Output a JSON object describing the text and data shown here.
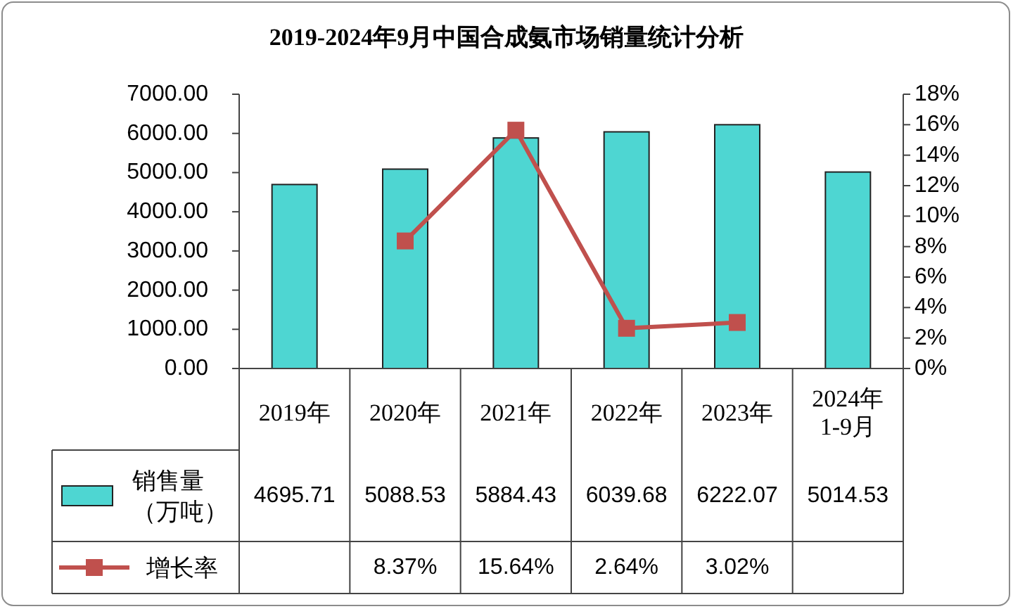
{
  "chart_data": {
    "type": "bar",
    "title": "2019-2024年9月中国合成氨市场销量统计分析",
    "categories": [
      "2019年",
      "2020年",
      "2021年",
      "2022年",
      "2023年",
      "2024年\n1-9月"
    ],
    "series": [
      {
        "name": "销售量（万吨）",
        "color": "#4ed6d2",
        "values": [
          4695.71,
          5088.53,
          5884.43,
          6039.68,
          6222.07,
          5014.53
        ],
        "value_labels": [
          "4695.71",
          "5088.53",
          "5884.43",
          "6039.68",
          "6222.07",
          "5014.53"
        ]
      },
      {
        "name": "增长率",
        "type": "line",
        "axis": "y2",
        "color": "#c0504d",
        "values": [
          null,
          8.37,
          15.64,
          2.64,
          3.02,
          null
        ],
        "value_labels": [
          null,
          "8.37%",
          "15.64%",
          "2.64%",
          "3.02%",
          null
        ]
      }
    ],
    "ylim": [
      0,
      7000
    ],
    "yticks": [
      {
        "value": 0,
        "label": "0.00"
      },
      {
        "value": 1000,
        "label": "1000.00"
      },
      {
        "value": 2000,
        "label": "2000.00"
      },
      {
        "value": 3000,
        "label": "3000.00"
      },
      {
        "value": 4000,
        "label": "4000.00"
      },
      {
        "value": 5000,
        "label": "5000.00"
      },
      {
        "value": 6000,
        "label": "6000.00"
      },
      {
        "value": 7000,
        "label": "7000.00"
      }
    ],
    "y2lim": [
      0,
      18
    ],
    "y2ticks": [
      {
        "value": 0,
        "label": "0%"
      },
      {
        "value": 2,
        "label": "2%"
      },
      {
        "value": 4,
        "label": "4%"
      },
      {
        "value": 6,
        "label": "6%"
      },
      {
        "value": 8,
        "label": "8%"
      },
      {
        "value": 10,
        "label": "10%"
      },
      {
        "value": 12,
        "label": "12%"
      },
      {
        "value": 14,
        "label": "14%"
      },
      {
        "value": 16,
        "label": "16%"
      },
      {
        "value": 18,
        "label": "18%"
      }
    ],
    "legend": "bottom left",
    "marker": "square",
    "line_style": "solid"
  }
}
